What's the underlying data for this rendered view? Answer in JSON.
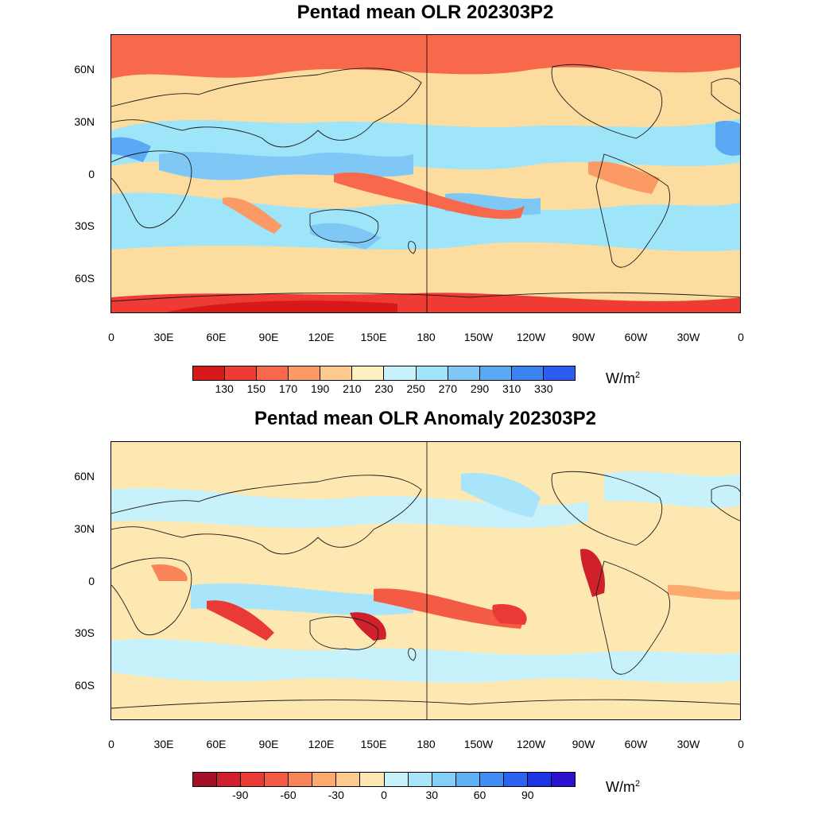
{
  "top_panel": {
    "title": "Pentad mean OLR 202303P2",
    "y_ticks": [
      "60N",
      "30N",
      "0",
      "30S",
      "60S"
    ],
    "x_ticks": [
      "0",
      "30E",
      "60E",
      "90E",
      "120E",
      "150E",
      "180",
      "150W",
      "120W",
      "90W",
      "60W",
      "30W",
      "0"
    ],
    "colorbar": {
      "labels": [
        "130",
        "150",
        "170",
        "190",
        "210",
        "230",
        "250",
        "270",
        "290",
        "310",
        "330"
      ],
      "colors": [
        "#d7191c",
        "#ee3b33",
        "#f8684a",
        "#fb9a64",
        "#fdc98d",
        "#fef0c0",
        "#c8f2fb",
        "#9fe5fa",
        "#7fc8f6",
        "#5aa9f5",
        "#3b82f3",
        "#2b5df2"
      ]
    },
    "unit_base": "W/m",
    "unit_exp": "2"
  },
  "bottom_panel": {
    "title": "Pentad mean OLR Anomaly 202303P2",
    "y_ticks": [
      "60N",
      "30N",
      "0",
      "30S",
      "60S"
    ],
    "x_ticks": [
      "0",
      "30E",
      "60E",
      "90E",
      "120E",
      "150E",
      "180",
      "150W",
      "120W",
      "90W",
      "60W",
      "30W",
      "0"
    ],
    "colorbar": {
      "labels": [
        "-90",
        "-60",
        "-30",
        "0",
        "30",
        "60",
        "90"
      ],
      "colors": [
        "#a50f27",
        "#d0202c",
        "#ea3a35",
        "#f35b45",
        "#f9845a",
        "#fca96d",
        "#fdc98d",
        "#fee8b2",
        "#c8f2fb",
        "#a8e5fa",
        "#83cff7",
        "#5fb1f5",
        "#3f8ef3",
        "#2a64f1",
        "#1e35e6",
        "#2a12d0"
      ]
    },
    "unit_base": "W/m",
    "unit_exp": "2"
  },
  "map_style": {
    "top_background": "#fddca0",
    "bottom_background": "#fee8b2",
    "coastline_color": "#1a1a1a"
  }
}
